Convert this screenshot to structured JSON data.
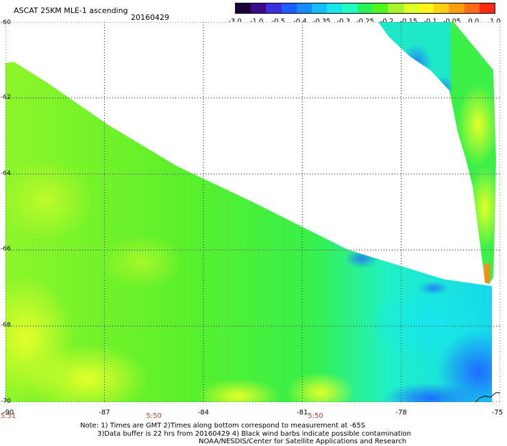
{
  "header": {
    "title": "ASCAT 25KM MLE-1 ascending",
    "date": "20160429"
  },
  "colorbar": {
    "ticks": [
      "-3.0",
      "-1.0",
      "-0.5",
      "-0.4",
      "-0.35",
      "-0.3",
      "-0.25",
      "-0.2",
      "-0.15",
      "-0.1",
      "-0.05",
      "0.0",
      "1.0"
    ],
    "colors": [
      "#1a0033",
      "#3a0a8a",
      "#3b2fd9",
      "#1e5cff",
      "#168cff",
      "#14bdfb",
      "#15e6ea",
      "#20ffc0",
      "#27f25a",
      "#52f51b",
      "#a4f52a",
      "#dfff2a",
      "#fff51a",
      "#ffcf13",
      "#ff9d13",
      "#ff6a14",
      "#ff2a14"
    ]
  },
  "map": {
    "lat_labels": [
      "-60",
      "-62",
      "-64",
      "-66",
      "-68",
      "-70"
    ],
    "lon_labels": [
      "-90",
      "-87",
      "-84",
      "-81",
      "-78",
      "-75"
    ],
    "time_labels": [
      "5:51",
      "5:50",
      "5:50"
    ]
  },
  "notes": [
    "Note: 1) Times are GMT 2)Times along bottom correspond to measurement at -65S",
    "3)Data buffer is 22 hrs from 20160429 4) Black wind barbs indicate possible contamination",
    "NOAA/NESDIS/Center for Satellite Applications and Research"
  ]
}
